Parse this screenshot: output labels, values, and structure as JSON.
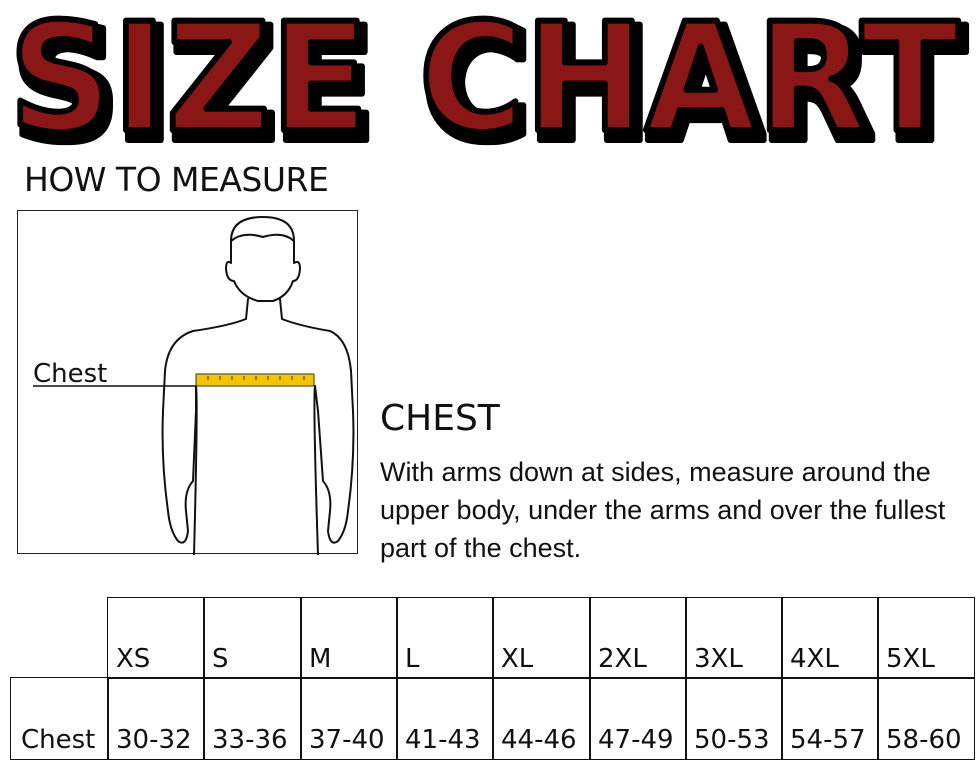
{
  "title": "SIZE CHART",
  "title_color": "#8B1414",
  "how_to_measure": "HOW TO MEASURE",
  "figure": {
    "chest_label": "Chest",
    "tape_color": "#F2C500"
  },
  "chest_section": {
    "heading": "CHEST",
    "description": "With arms down at sides, measure around the upper body, under the arms and over the fullest part of the chest."
  },
  "table": {
    "row_label": "Chest",
    "sizes": [
      "XS",
      "S",
      "M",
      "L",
      "XL",
      "2XL",
      "3XL",
      "4XL",
      "5XL"
    ],
    "chest": [
      "30-32",
      "33-36",
      "37-40",
      "41-43",
      "44-46",
      "47-49",
      "50-53",
      "54-57",
      "58-60"
    ]
  }
}
